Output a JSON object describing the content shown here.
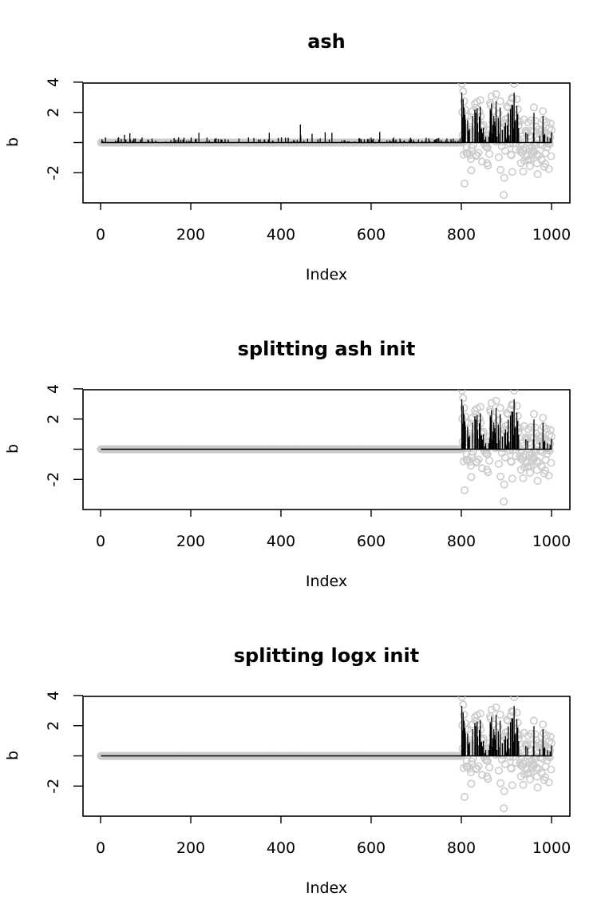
{
  "colors": {
    "points": "#cccccc",
    "estimate": "#000000",
    "axes": "#000000"
  },
  "chart_data": [
    {
      "type": "scatter",
      "title": "ash",
      "xlabel": "Index",
      "ylabel": "b",
      "xlim": [
        1,
        1000
      ],
      "ylim": [
        -3.8,
        4.2
      ],
      "x_ticks": [
        0,
        200,
        400,
        600,
        800,
        1000
      ],
      "x_tick_labels": [
        "0",
        "200",
        "400",
        "600",
        "800",
        "1000"
      ],
      "y_ticks": [
        -2,
        0,
        2,
        4
      ],
      "y_tick_labels": [
        "-2",
        "",
        "2",
        "4"
      ],
      "grid": false,
      "legend": "none",
      "points": {
        "x_first": 1,
        "x_last": 1000,
        "null_range": [
          1,
          800
        ],
        "null_value": 0,
        "signal_range": [
          801,
          1000
        ],
        "min": -3.5,
        "max": 3.9
      },
      "estimate": {
        "style": "vertical-lines",
        "range": [
          1,
          1000
        ],
        "peak_x": 830,
        "peak_value": 3.6,
        "notable_spike": {
          "x": 443,
          "value": 1.2
        }
      }
    },
    {
      "type": "scatter",
      "title": "splitting ash init",
      "xlabel": "Index",
      "ylabel": "b",
      "xlim": [
        1,
        1000
      ],
      "ylim": [
        -3.8,
        4.2
      ],
      "x_ticks": [
        0,
        200,
        400,
        600,
        800,
        1000
      ],
      "x_tick_labels": [
        "0",
        "200",
        "400",
        "600",
        "800",
        "1000"
      ],
      "y_ticks": [
        -2,
        0,
        2,
        4
      ],
      "y_tick_labels": [
        "-2",
        "",
        "2",
        "4"
      ],
      "grid": false,
      "legend": "none",
      "points": {
        "x_first": 1,
        "x_last": 1000,
        "null_range": [
          1,
          800
        ],
        "null_value": 0,
        "signal_range": [
          801,
          1000
        ],
        "min": -3.5,
        "max": 3.9
      },
      "estimate": {
        "style": "vertical-lines",
        "nonzero_range": [
          801,
          1000
        ],
        "peak_x": 830,
        "peak_value": 3.6
      }
    },
    {
      "type": "scatter",
      "title": "splitting logx init",
      "xlabel": "Index",
      "ylabel": "b",
      "xlim": [
        1,
        1000
      ],
      "ylim": [
        -3.8,
        4.2
      ],
      "x_ticks": [
        0,
        200,
        400,
        600,
        800,
        1000
      ],
      "x_tick_labels": [
        "0",
        "200",
        "400",
        "600",
        "800",
        "1000"
      ],
      "y_ticks": [
        -2,
        0,
        2,
        4
      ],
      "y_tick_labels": [
        "-2",
        "",
        "2",
        "4"
      ],
      "grid": false,
      "legend": "none",
      "points": {
        "x_first": 1,
        "x_last": 1000,
        "null_range": [
          1,
          800
        ],
        "null_value": 0,
        "signal_range": [
          801,
          1000
        ],
        "min": -3.5,
        "max": 3.9
      },
      "estimate": {
        "style": "vertical-lines",
        "nonzero_range": [
          801,
          1000
        ],
        "peak_x": 830,
        "peak_value": 3.6
      }
    }
  ]
}
